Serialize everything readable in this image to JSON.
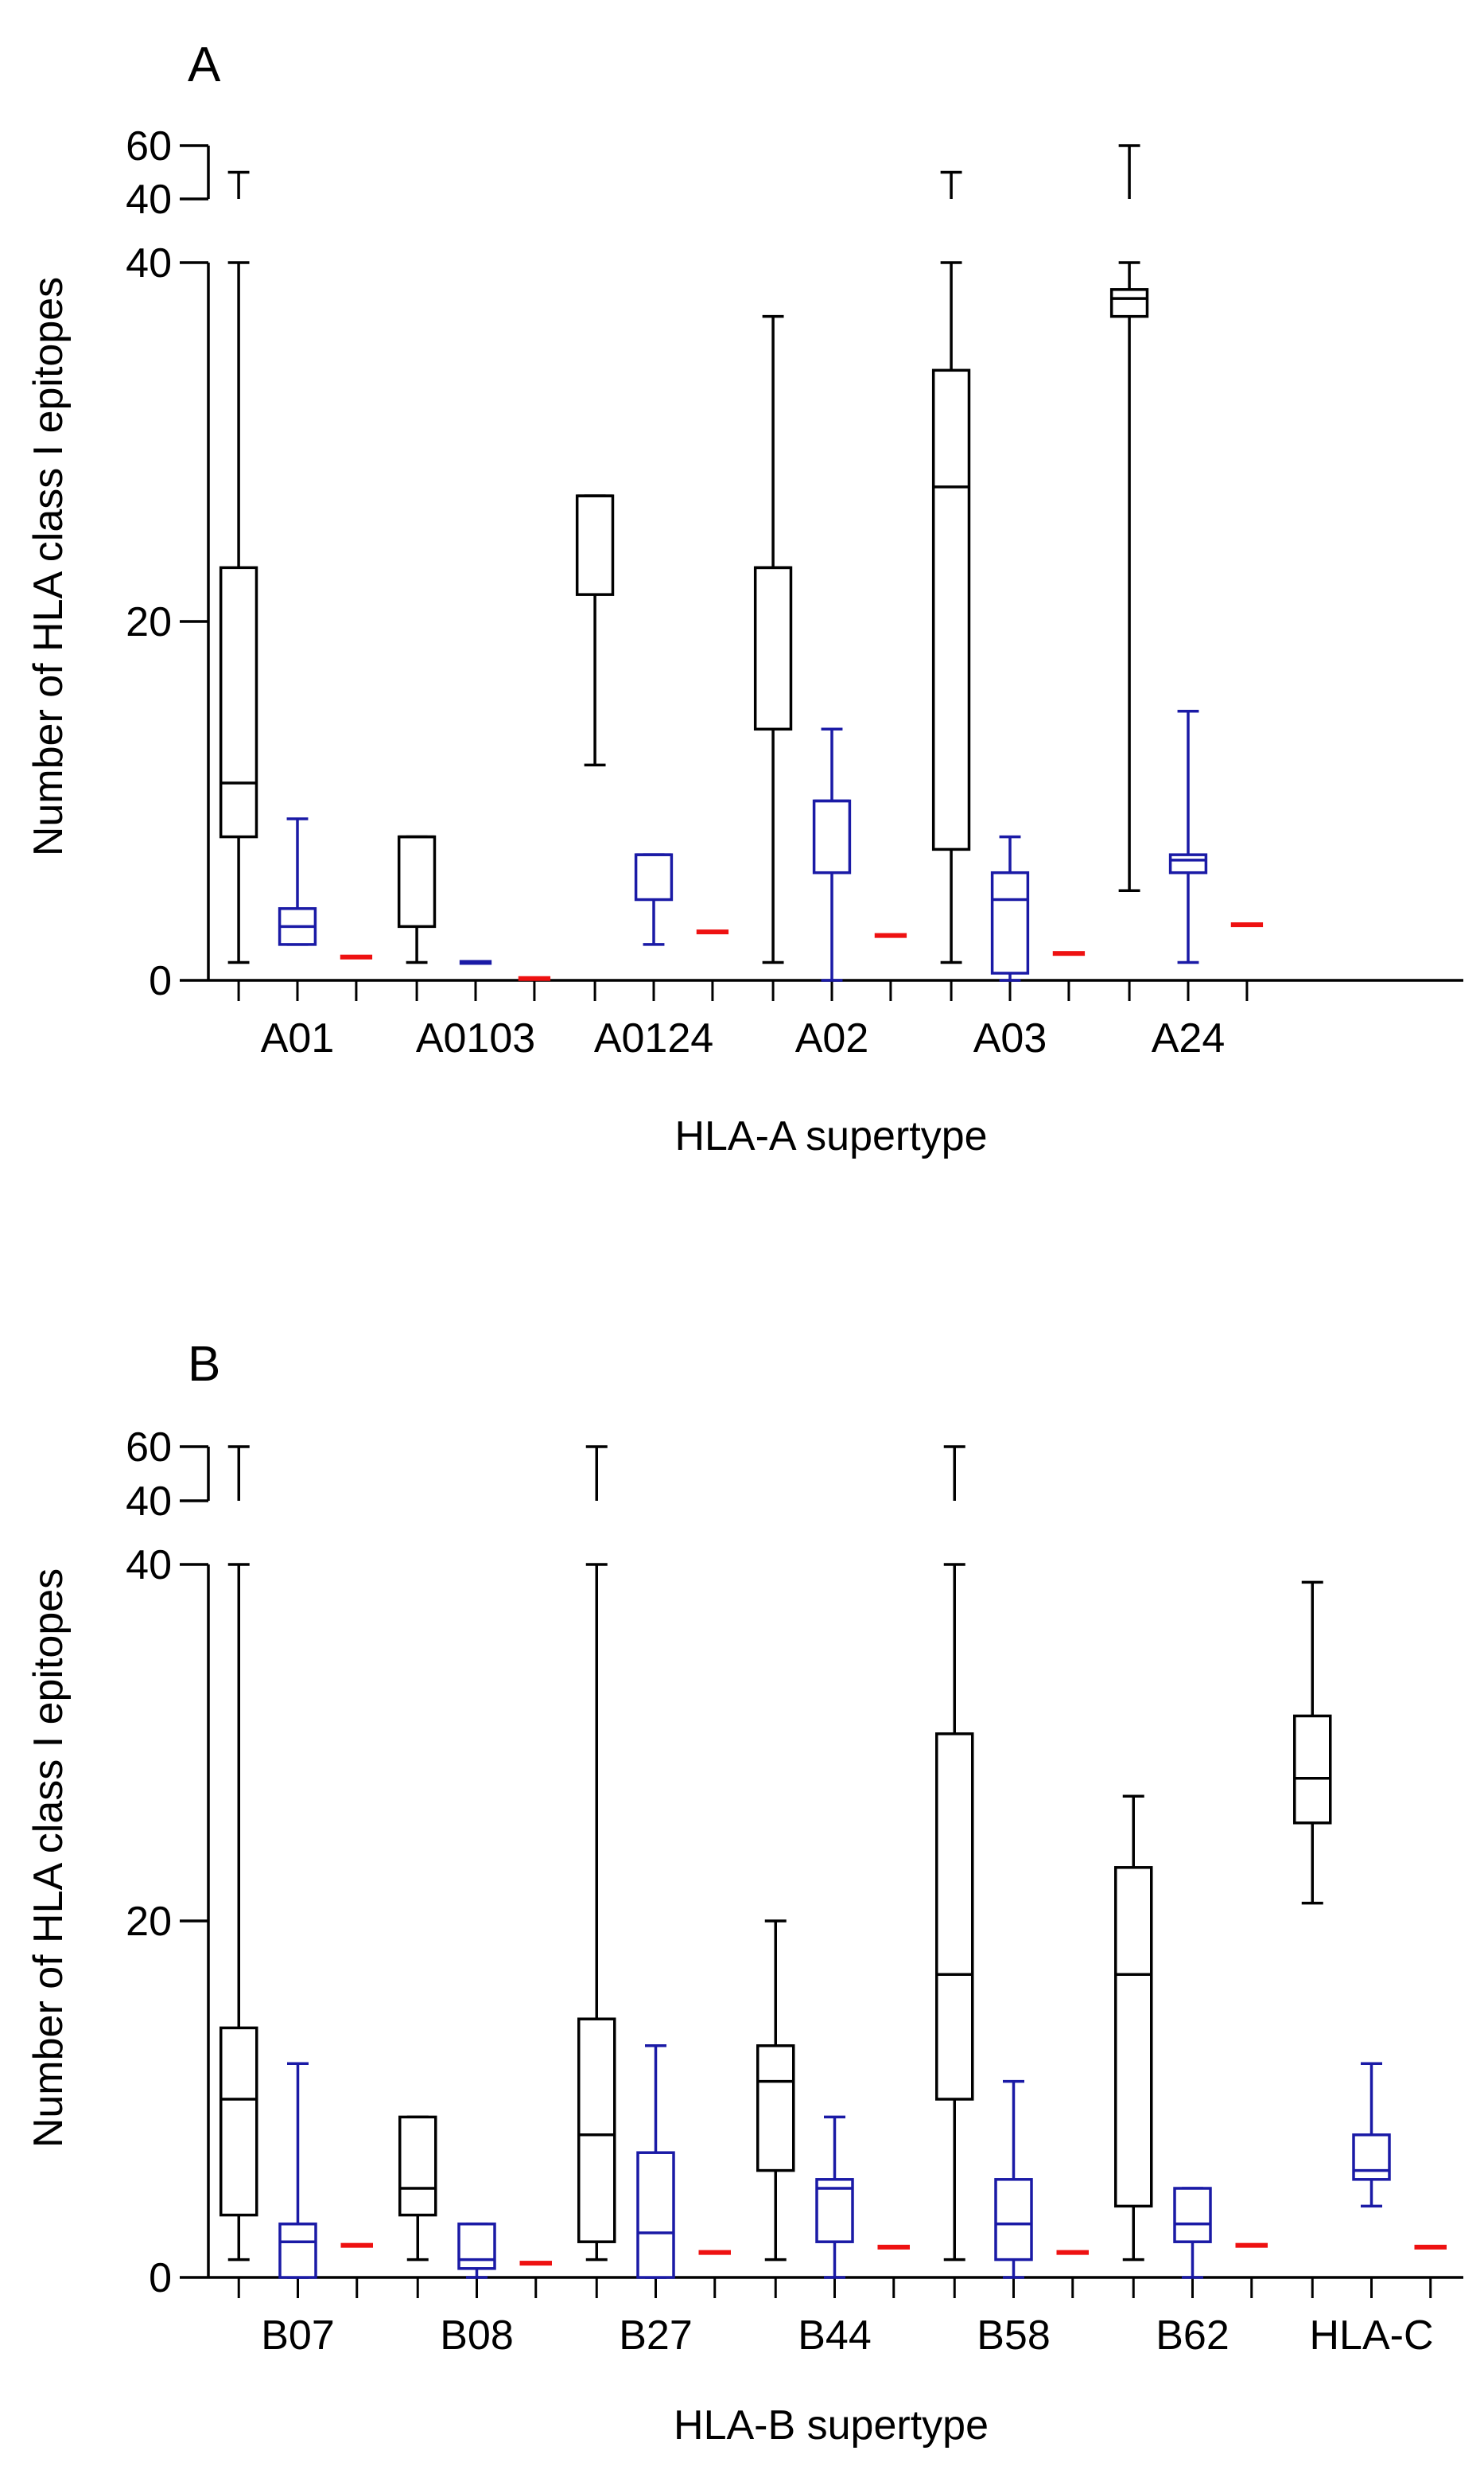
{
  "colors": {
    "black": "#000000",
    "blue": "#1a1aa6",
    "red": "#ee1111"
  },
  "chart_data": [
    {
      "panel_label": "A",
      "type": "box",
      "xlabel": "HLA-A supertype",
      "ylabel": "Number of HLA class I epitopes",
      "y_segments": [
        {
          "range": [
            0,
            40
          ],
          "ticks": [
            0,
            20,
            40
          ]
        },
        {
          "range": [
            40,
            60
          ],
          "ticks": [
            40,
            60
          ]
        }
      ],
      "groups": [
        {
          "name": "A01",
          "boxes": [
            {
              "color": "black",
              "min": 1,
              "q1": 8,
              "median": 11,
              "q3": 23,
              "max": 40,
              "extra_max": 50
            },
            {
              "color": "blue",
              "min": 2,
              "q1": 2,
              "median": 3,
              "q3": 4,
              "max": 9
            },
            {
              "color": "red",
              "min": 1.3,
              "q1": 1.3,
              "median": 1.3,
              "q3": 1.3,
              "max": 1.3
            }
          ]
        },
        {
          "name": "A0103",
          "boxes": [
            {
              "color": "black",
              "min": 1,
              "q1": 3,
              "median": 8,
              "q3": 8,
              "max": 8
            },
            {
              "color": "blue",
              "min": 1,
              "q1": 1,
              "median": 1,
              "q3": 1,
              "max": 1
            },
            {
              "color": "red",
              "min": 0.1,
              "q1": 0.1,
              "median": 0.1,
              "q3": 0.1,
              "max": 0.1
            }
          ]
        },
        {
          "name": "A0124",
          "boxes": [
            {
              "color": "black",
              "min": 12,
              "q1": 21.5,
              "median": 27,
              "q3": 27,
              "max": 27
            },
            {
              "color": "blue",
              "min": 2,
              "q1": 4.5,
              "median": 7,
              "q3": 7,
              "max": 7
            },
            {
              "color": "red",
              "min": 2.7,
              "q1": 2.7,
              "median": 2.7,
              "q3": 2.7,
              "max": 2.7
            }
          ]
        },
        {
          "name": "A02",
          "boxes": [
            {
              "color": "black",
              "min": 1,
              "q1": 14,
              "median": 23,
              "q3": 23,
              "max": 37
            },
            {
              "color": "blue",
              "min": 0,
              "q1": 6,
              "median": 10,
              "q3": 10,
              "max": 14
            },
            {
              "color": "red",
              "min": 2.5,
              "q1": 2.5,
              "median": 2.5,
              "q3": 2.5,
              "max": 2.5
            }
          ]
        },
        {
          "name": "A03",
          "boxes": [
            {
              "color": "black",
              "min": 1,
              "q1": 7.3,
              "median": 27.5,
              "q3": 34,
              "max": 40,
              "extra_max": 50
            },
            {
              "color": "blue",
              "min": 0,
              "q1": 0.4,
              "median": 4.5,
              "q3": 6,
              "max": 8
            },
            {
              "color": "red",
              "min": 1.5,
              "q1": 1.5,
              "median": 1.5,
              "q3": 1.5,
              "max": 1.5
            }
          ]
        },
        {
          "name": "A24",
          "boxes": [
            {
              "color": "black",
              "min": 5,
              "q1": 37,
              "median": 38,
              "q3": 38.5,
              "max": 40,
              "extra_max": 60
            },
            {
              "color": "blue",
              "min": 1,
              "q1": 6,
              "median": 6.7,
              "q3": 7,
              "max": 15
            },
            {
              "color": "red",
              "min": 3.1,
              "q1": 3.1,
              "median": 3.1,
              "q3": 3.1,
              "max": 3.1
            }
          ]
        }
      ]
    },
    {
      "panel_label": "B",
      "type": "box",
      "xlabel": "HLA-B supertype",
      "ylabel": "Number of HLA class I epitopes",
      "y_segments": [
        {
          "range": [
            0,
            40
          ],
          "ticks": [
            0,
            20,
            40
          ]
        },
        {
          "range": [
            40,
            60
          ],
          "ticks": [
            40,
            60
          ]
        }
      ],
      "groups": [
        {
          "name": "B07",
          "boxes": [
            {
              "color": "black",
              "min": 1,
              "q1": 3.5,
              "median": 10,
              "q3": 14,
              "max": 40,
              "extra_max": 60
            },
            {
              "color": "blue",
              "min": 0,
              "q1": 0,
              "median": 2,
              "q3": 3,
              "max": 12
            },
            {
              "color": "red",
              "min": 1.8,
              "q1": 1.8,
              "median": 1.8,
              "q3": 1.8,
              "max": 1.8
            }
          ]
        },
        {
          "name": "B08",
          "boxes": [
            {
              "color": "black",
              "min": 1,
              "q1": 3.5,
              "median": 5,
              "q3": 9,
              "max": 9
            },
            {
              "color": "blue",
              "min": 0,
              "q1": 0.5,
              "median": 1,
              "q3": 3,
              "max": 3
            },
            {
              "color": "red",
              "min": 0.8,
              "q1": 0.8,
              "median": 0.8,
              "q3": 0.8,
              "max": 0.8
            }
          ]
        },
        {
          "name": "B27",
          "boxes": [
            {
              "color": "black",
              "min": 1,
              "q1": 2,
              "median": 8,
              "q3": 14.5,
              "max": 40,
              "extra_max": 60
            },
            {
              "color": "blue",
              "min": 0,
              "q1": 0,
              "median": 2.5,
              "q3": 7,
              "max": 13
            },
            {
              "color": "red",
              "min": 1.4,
              "q1": 1.4,
              "median": 1.4,
              "q3": 1.4,
              "max": 1.4
            }
          ]
        },
        {
          "name": "B44",
          "boxes": [
            {
              "color": "black",
              "min": 1,
              "q1": 6,
              "median": 11,
              "q3": 13,
              "max": 20
            },
            {
              "color": "blue",
              "min": 0,
              "q1": 2,
              "median": 5,
              "q3": 5.5,
              "max": 9
            },
            {
              "color": "red",
              "min": 1.7,
              "q1": 1.7,
              "median": 1.7,
              "q3": 1.7,
              "max": 1.7
            }
          ]
        },
        {
          "name": "B58",
          "boxes": [
            {
              "color": "black",
              "min": 1,
              "q1": 10,
              "median": 17,
              "q3": 30.5,
              "max": 40,
              "extra_max": 60
            },
            {
              "color": "blue",
              "min": 0,
              "q1": 1,
              "median": 3,
              "q3": 5.5,
              "max": 11
            },
            {
              "color": "red",
              "min": 1.4,
              "q1": 1.4,
              "median": 1.4,
              "q3": 1.4,
              "max": 1.4
            }
          ]
        },
        {
          "name": "B62",
          "boxes": [
            {
              "color": "black",
              "min": 1,
              "q1": 4,
              "median": 17,
              "q3": 23,
              "max": 27
            },
            {
              "color": "blue",
              "min": 0,
              "q1": 2,
              "median": 3,
              "q3": 5,
              "max": 5
            },
            {
              "color": "red",
              "min": 1.8,
              "q1": 1.8,
              "median": 1.8,
              "q3": 1.8,
              "max": 1.8
            }
          ]
        },
        {
          "name": "HLA-C",
          "boxes": [
            {
              "color": "black",
              "min": 21,
              "q1": 25.5,
              "median": 28,
              "q3": 31.5,
              "max": 39
            },
            {
              "color": "blue",
              "min": 4,
              "q1": 5.5,
              "median": 6,
              "q3": 8,
              "max": 12
            },
            {
              "color": "red",
              "min": 1.7,
              "q1": 1.7,
              "median": 1.7,
              "q3": 1.7,
              "max": 1.7
            }
          ]
        }
      ]
    }
  ]
}
